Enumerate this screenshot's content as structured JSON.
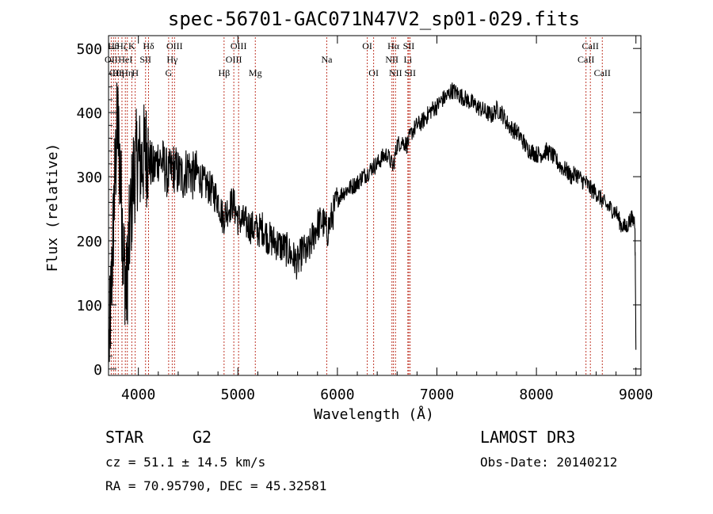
{
  "chart_data": {
    "type": "line",
    "title": "spec-56701-GAC071N47V2_sp01-029.fits",
    "xlabel": "Wavelength (Å)",
    "ylabel": "Flux (relative)",
    "xlim": [
      3700,
      9050
    ],
    "ylim": [
      -10,
      520
    ],
    "xticks": [
      4000,
      5000,
      6000,
      7000,
      8000,
      9000
    ],
    "yticks": [
      0,
      100,
      200,
      300,
      400,
      500
    ],
    "grid": false,
    "series": [
      {
        "name": "flux",
        "points": [
          [
            3700,
            10
          ],
          [
            3730,
            130
          ],
          [
            3760,
            280
          ],
          [
            3790,
            390
          ],
          [
            3820,
            300
          ],
          [
            3850,
            180
          ],
          [
            3880,
            120
          ],
          [
            3910,
            210
          ],
          [
            3950,
            300
          ],
          [
            3990,
            330
          ],
          [
            4030,
            320
          ],
          [
            4070,
            340
          ],
          [
            4100,
            330
          ],
          [
            4150,
            310
          ],
          [
            4200,
            330
          ],
          [
            4250,
            320
          ],
          [
            4300,
            300
          ],
          [
            4350,
            315
          ],
          [
            4400,
            305
          ],
          [
            4450,
            300
          ],
          [
            4500,
            315
          ],
          [
            4550,
            300
          ],
          [
            4600,
            305
          ],
          [
            4650,
            290
          ],
          [
            4700,
            285
          ],
          [
            4750,
            275
          ],
          [
            4800,
            265
          ],
          [
            4850,
            235
          ],
          [
            4900,
            250
          ],
          [
            4950,
            260
          ],
          [
            5000,
            235
          ],
          [
            5050,
            230
          ],
          [
            5100,
            225
          ],
          [
            5150,
            220
          ],
          [
            5200,
            215
          ],
          [
            5250,
            220
          ],
          [
            5300,
            205
          ],
          [
            5350,
            200
          ],
          [
            5400,
            195
          ],
          [
            5450,
            190
          ],
          [
            5500,
            185
          ],
          [
            5550,
            175
          ],
          [
            5600,
            165
          ],
          [
            5650,
            185
          ],
          [
            5700,
            180
          ],
          [
            5750,
            205
          ],
          [
            5800,
            225
          ],
          [
            5850,
            230
          ],
          [
            5900,
            215
          ],
          [
            5950,
            240
          ],
          [
            6000,
            265
          ],
          [
            6050,
            275
          ],
          [
            6100,
            280
          ],
          [
            6150,
            285
          ],
          [
            6200,
            290
          ],
          [
            6250,
            300
          ],
          [
            6300,
            305
          ],
          [
            6350,
            315
          ],
          [
            6400,
            320
          ],
          [
            6450,
            330
          ],
          [
            6500,
            335
          ],
          [
            6560,
            315
          ],
          [
            6600,
            350
          ],
          [
            6650,
            355
          ],
          [
            6700,
            350
          ],
          [
            6750,
            370
          ],
          [
            6800,
            380
          ],
          [
            6850,
            385
          ],
          [
            6900,
            395
          ],
          [
            6950,
            405
          ],
          [
            7000,
            410
          ],
          [
            7050,
            420
          ],
          [
            7100,
            425
          ],
          [
            7150,
            435
          ],
          [
            7200,
            430
          ],
          [
            7250,
            425
          ],
          [
            7300,
            420
          ],
          [
            7350,
            415
          ],
          [
            7400,
            410
          ],
          [
            7450,
            405
          ],
          [
            7500,
            400
          ],
          [
            7550,
            395
          ],
          [
            7600,
            405
          ],
          [
            7650,
            400
          ],
          [
            7700,
            385
          ],
          [
            7750,
            375
          ],
          [
            7800,
            370
          ],
          [
            7850,
            360
          ],
          [
            7900,
            345
          ],
          [
            7950,
            340
          ],
          [
            8000,
            335
          ],
          [
            8050,
            335
          ],
          [
            8100,
            340
          ],
          [
            8150,
            335
          ],
          [
            8200,
            325
          ],
          [
            8250,
            315
          ],
          [
            8300,
            310
          ],
          [
            8350,
            300
          ],
          [
            8400,
            305
          ],
          [
            8450,
            295
          ],
          [
            8500,
            290
          ],
          [
            8550,
            280
          ],
          [
            8600,
            275
          ],
          [
            8650,
            265
          ],
          [
            8700,
            255
          ],
          [
            8750,
            250
          ],
          [
            8800,
            245
          ],
          [
            8850,
            225
          ],
          [
            8900,
            220
          ],
          [
            8950,
            235
          ],
          [
            8990,
            230
          ],
          [
            9000,
            30
          ]
        ]
      }
    ],
    "line_markers": [
      {
        "w": 3727,
        "label": "OII",
        "row": 1
      },
      {
        "w": 3750,
        "label": "Hθ",
        "row": 0
      },
      {
        "w": 3770,
        "label": "CII",
        "row": 2
      },
      {
        "w": 3798,
        "label": "Hη",
        "row": 2
      },
      {
        "w": 3835,
        "label": "Hζ",
        "row": 0
      },
      {
        "w": 3869,
        "label": "HeI",
        "row": 1
      },
      {
        "w": 3889,
        "label": "Hη",
        "row": 2
      },
      {
        "w": 3934,
        "label": "K",
        "row": 0
      },
      {
        "w": 3968,
        "label": "H",
        "row": 2
      },
      {
        "w": 4072,
        "label": "SII",
        "row": 1
      },
      {
        "w": 4102,
        "label": "Hδ",
        "row": 0
      },
      {
        "w": 4304,
        "label": "G",
        "row": 2
      },
      {
        "w": 4340,
        "label": "Hγ",
        "row": 1
      },
      {
        "w": 4363,
        "label": "OIII",
        "row": 0
      },
      {
        "w": 4861,
        "label": "Hβ",
        "row": 2
      },
      {
        "w": 4959,
        "label": "OIII",
        "row": 1
      },
      {
        "w": 5007,
        "label": "OIII",
        "row": 0
      },
      {
        "w": 5175,
        "label": "Mg",
        "row": 2
      },
      {
        "w": 5893,
        "label": "Na",
        "row": 1
      },
      {
        "w": 6300,
        "label": "OI",
        "row": 0
      },
      {
        "w": 6364,
        "label": "OI",
        "row": 2
      },
      {
        "w": 6548,
        "label": "NII",
        "row": 1
      },
      {
        "w": 6563,
        "label": "Hα",
        "row": 0
      },
      {
        "w": 6584,
        "label": "NII",
        "row": 2
      },
      {
        "w": 6708,
        "label": "Li",
        "row": 1
      },
      {
        "w": 6717,
        "label": "SII",
        "row": 0
      },
      {
        "w": 6731,
        "label": "SII",
        "row": 2
      },
      {
        "w": 8498,
        "label": "CaII",
        "row": 1
      },
      {
        "w": 8542,
        "label": "CaII",
        "row": 0
      },
      {
        "w": 8662,
        "label": "CaII",
        "row": 2
      }
    ]
  },
  "info": {
    "class": "STAR",
    "subclass": "G2",
    "survey": "LAMOST DR3",
    "cz": "cz = 51.1 ± 14.5 km/s",
    "obs_date": "Obs-Date: 20140212",
    "coords": "RA =  70.95790, DEC =  45.32581"
  }
}
